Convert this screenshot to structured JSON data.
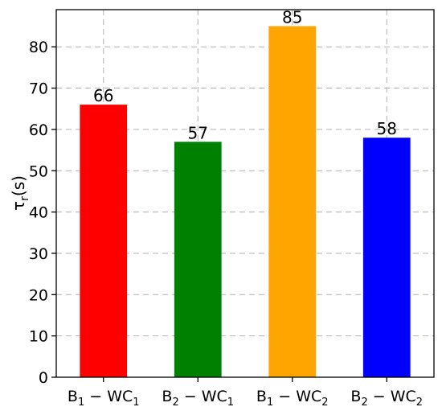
{
  "chart_data": {
    "type": "bar",
    "categories": [
      {
        "main": "B",
        "sub1": "1",
        "mid": " − WC",
        "sub2": "1"
      },
      {
        "main": "B",
        "sub1": "2",
        "mid": " − WC",
        "sub2": "1"
      },
      {
        "main": "B",
        "sub1": "1",
        "mid": " − WC",
        "sub2": "2"
      },
      {
        "main": "B",
        "sub1": "2",
        "mid": " − WC",
        "sub2": "2"
      }
    ],
    "values": [
      66,
      57,
      85,
      58
    ],
    "data_labels": [
      "66",
      "57",
      "85",
      "58"
    ],
    "colors": [
      "#ff0000",
      "#008000",
      "#ffa500",
      "#0000ff"
    ],
    "ylabel": {
      "main": "τ",
      "sub": "r",
      "rest": "(s)"
    },
    "yticks": [
      0,
      10,
      20,
      30,
      40,
      50,
      60,
      70,
      80
    ],
    "ylim": [
      0,
      89
    ],
    "grid": true,
    "title": "",
    "xlabel": ""
  }
}
